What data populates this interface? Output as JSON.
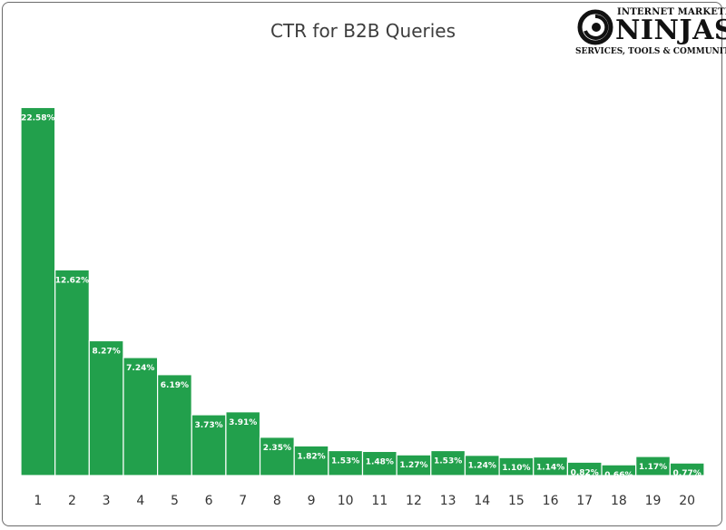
{
  "logo": {
    "line1": "INTERNET MARKETING",
    "line2": "NINJAS",
    "line3": "SERVICES, TOOLS & COMMUNITIES"
  },
  "chart_data": {
    "type": "bar",
    "title": "CTR for B2B Queries",
    "xlabel": "",
    "ylabel": "",
    "ylim": [
      0,
      25
    ],
    "grid": false,
    "color": "#22a04c",
    "categories": [
      "1",
      "2",
      "3",
      "4",
      "5",
      "6",
      "7",
      "8",
      "9",
      "10",
      "11",
      "12",
      "13",
      "14",
      "15",
      "16",
      "17",
      "18",
      "19",
      "20"
    ],
    "values": [
      22.58,
      12.62,
      8.27,
      7.24,
      6.19,
      3.73,
      3.91,
      2.35,
      1.82,
      1.53,
      1.48,
      1.27,
      1.53,
      1.24,
      1.1,
      1.14,
      0.82,
      0.66,
      1.17,
      0.77
    ],
    "data_labels": [
      "22.58%",
      "12.62%",
      "8.27%",
      "7.24%",
      "6.19%",
      "3.73%",
      "3.91%",
      "2.35%",
      "1.82%",
      "1.53%",
      "1.48%",
      "1.27%",
      "1.53%",
      "1.24%",
      "1.10%",
      "1.14%",
      "0.82%",
      "0.66%",
      "1.17%",
      "0.77%"
    ]
  }
}
